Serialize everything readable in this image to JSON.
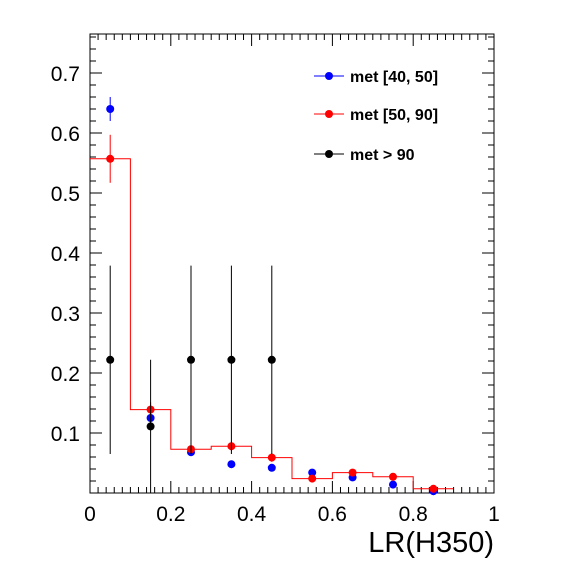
{
  "chart_data": {
    "type": "scatter",
    "xlabel": "LR(H350)",
    "ylabel": "",
    "xlim": [
      0,
      1
    ],
    "ylim": [
      0,
      0.765
    ],
    "x_ticks": [
      0,
      0.2,
      0.4,
      0.6,
      0.8,
      1
    ],
    "x_tick_labels": [
      "0",
      "0.2",
      "0.4",
      "0.6",
      "0.8",
      "1"
    ],
    "y_ticks": [
      0.1,
      0.2,
      0.3,
      0.4,
      0.5,
      0.6,
      0.7
    ],
    "y_tick_labels": [
      "0.1",
      "0.2",
      "0.3",
      "0.4",
      "0.5",
      "0.6",
      "0.7"
    ],
    "grid": false,
    "legend_position": "top-right",
    "bin_centers": [
      0.05,
      0.15,
      0.25,
      0.35,
      0.45,
      0.55,
      0.65,
      0.75,
      0.85
    ],
    "series": [
      {
        "name": "met [40, 50]",
        "color": "#0000ff",
        "values": [
          0.64,
          0.125,
          0.068,
          0.048,
          0.042,
          0.034,
          0.026,
          0.014,
          0.003
        ],
        "errors": [
          0.02,
          0.01,
          0.006,
          0.005,
          0.004,
          0.004,
          0.003,
          0.002,
          0.001
        ]
      },
      {
        "name": "met [50, 90]",
        "color": "#ff0000",
        "histogram": true,
        "values": [
          0.557,
          0.139,
          0.073,
          0.078,
          0.059,
          0.024,
          0.034,
          0.027,
          0.007
        ],
        "errors": [
          0.04,
          0.012,
          0.008,
          0.008,
          0.007,
          0.004,
          0.005,
          0.004,
          0.002
        ]
      },
      {
        "name": "met > 90",
        "color": "#000000",
        "values": [
          0.222,
          0.111,
          0.222,
          0.222,
          0.222,
          null,
          null,
          null,
          null
        ],
        "errors": [
          0.157,
          0.111,
          0.157,
          0.157,
          0.157,
          null,
          null,
          null,
          null
        ]
      }
    ]
  }
}
